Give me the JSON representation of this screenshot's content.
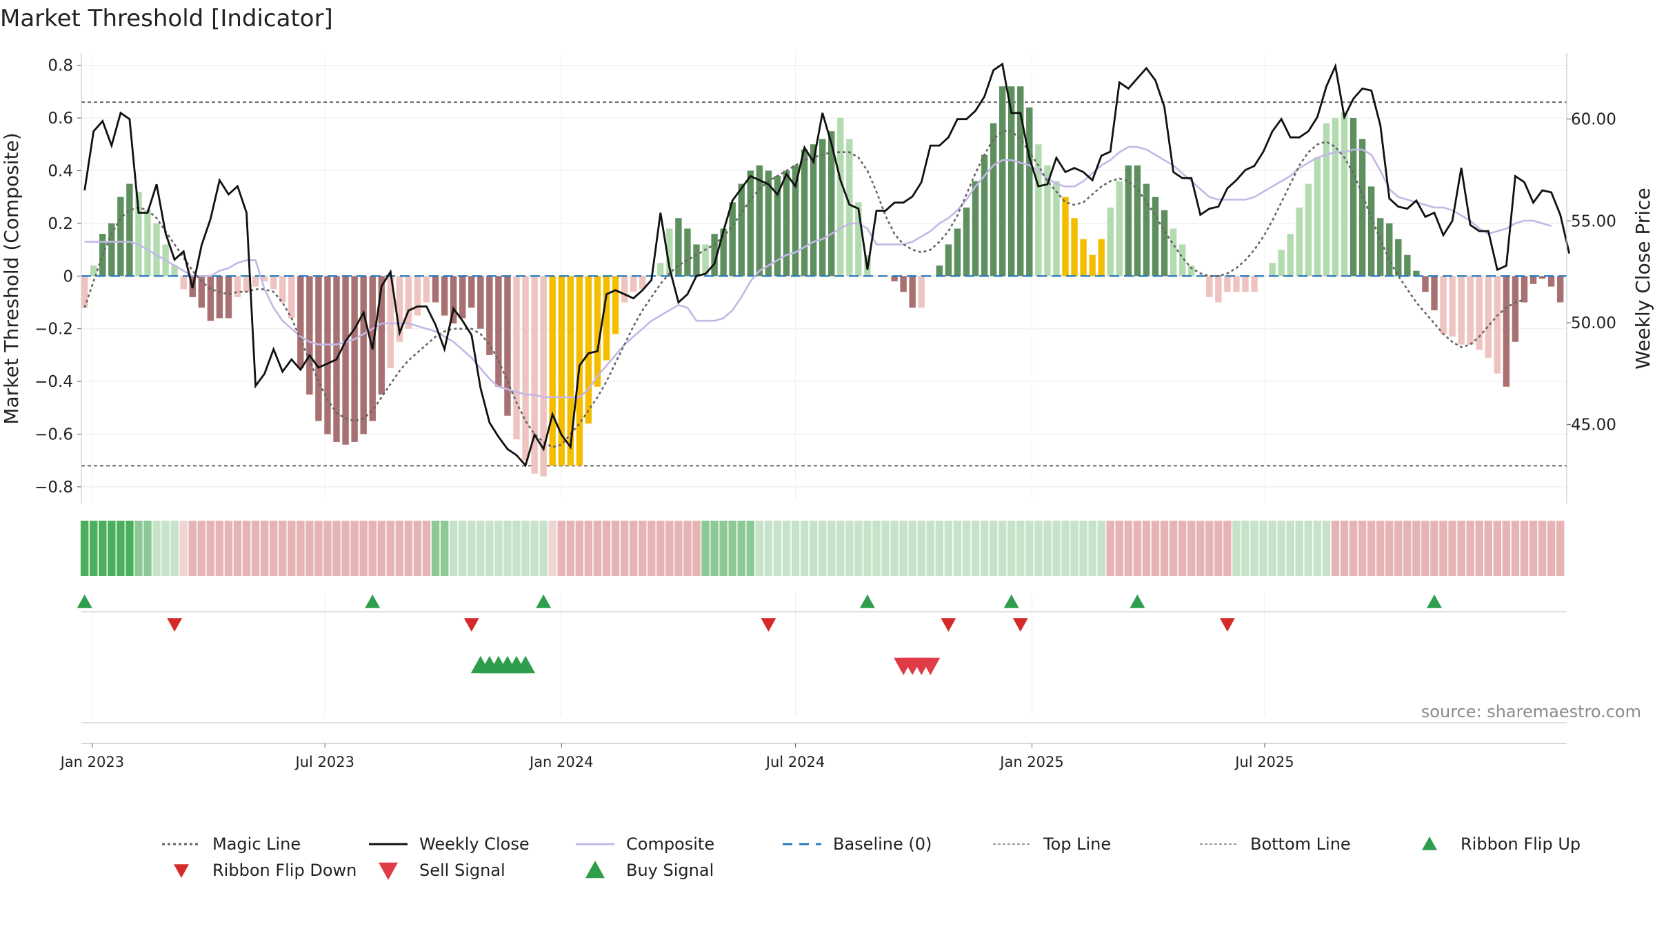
{
  "title": "Market Threshold [Indicator]",
  "source": "source: sharemaestro.com",
  "chart_data": {
    "type": "bar",
    "y_left_label": "Market Threshold (Composite)",
    "y_right_label": "Weekly Close Price",
    "y_left_ticks": [
      0.8,
      0.6,
      0.4,
      0.2,
      0,
      -0.2,
      -0.4,
      -0.6,
      -0.8
    ],
    "y_left_tick_labels": [
      "0.8",
      "0.6",
      "0.4",
      "0.2",
      "0",
      "−0.2",
      "−0.4",
      "−0.6",
      "−0.8"
    ],
    "y_left_range": [
      -0.85,
      0.82
    ],
    "y_right_ticks": [
      60,
      55,
      50,
      45
    ],
    "y_right_tick_labels": [
      "60.00",
      "55.00",
      "50.00",
      "45.00"
    ],
    "y_right_range": [
      41.3,
      62.9
    ],
    "x_ticks": [
      "Jan 2023",
      "Jul 2023",
      "Jan 2024",
      "Jul 2024",
      "Jan 2025",
      "Jul 2025"
    ],
    "x_start": "2022-12-26",
    "x_step_days": 7,
    "threshold_lines": {
      "top": 0.66,
      "bottom": -0.72
    },
    "histogram": [
      -0.12,
      0.04,
      0.16,
      0.2,
      0.3,
      0.35,
      0.32,
      0.25,
      0.2,
      0.12,
      0.04,
      -0.05,
      -0.08,
      -0.12,
      -0.17,
      -0.16,
      -0.16,
      -0.08,
      -0.06,
      -0.04,
      -0.02,
      -0.05,
      -0.1,
      -0.16,
      -0.35,
      -0.45,
      -0.55,
      -0.6,
      -0.63,
      -0.64,
      -0.63,
      -0.6,
      -0.55,
      -0.45,
      -0.35,
      -0.25,
      -0.2,
      -0.15,
      -0.1,
      -0.1,
      -0.15,
      -0.18,
      -0.16,
      -0.12,
      -0.2,
      -0.3,
      -0.42,
      -0.53,
      -0.62,
      -0.7,
      -0.75,
      -0.76,
      -0.72,
      -0.72,
      -0.72,
      -0.72,
      -0.56,
      -0.42,
      -0.32,
      -0.22,
      -0.1,
      -0.06,
      -0.05,
      0,
      0.05,
      0.18,
      0.22,
      0.18,
      0.12,
      0.12,
      0.16,
      0.18,
      0.28,
      0.35,
      0.4,
      0.42,
      0.4,
      0.38,
      0.4,
      0.42,
      0.48,
      0.5,
      0.52,
      0.55,
      0.6,
      0.52,
      0.28,
      0.08,
      0,
      0,
      -0.02,
      -0.06,
      -0.12,
      -0.12,
      0,
      0.04,
      0.12,
      0.18,
      0.26,
      0.36,
      0.46,
      0.58,
      0.72,
      0.72,
      0.72,
      0.64,
      0.5,
      0.42,
      0.36,
      0.3,
      0.22,
      0.14,
      0.08,
      0.14,
      0.26,
      0.36,
      0.42,
      0.42,
      0.35,
      0.3,
      0.25,
      0.18,
      0.12,
      0.04,
      0,
      -0.08,
      -0.1,
      -0.06,
      -0.06,
      -0.06,
      -0.06,
      0,
      0.05,
      0.1,
      0.16,
      0.26,
      0.35,
      0.45,
      0.58,
      0.6,
      0.62,
      0.6,
      0.52,
      0.34,
      0.22,
      0.2,
      0.14,
      0.08,
      0.02,
      -0.06,
      -0.13,
      -0.22,
      -0.23,
      -0.26,
      -0.26,
      -0.28,
      -0.31,
      -0.37,
      -0.42,
      -0.25,
      -0.1,
      -0.03,
      -0.01,
      -0.04,
      -0.1
    ],
    "hist_color_codes": "LLDDDDLLLLLLRRRRRLLLLLLLRRRRRRRRRRLLLLLRRRRRRRRRLLLLLLLLLLLLLLLLLLDDDLDDDDDDDDDDDDDDLLLLRRRRRLDDDDDDDDDDDDLLLLLLLLLLDDDDDLLLLLLLLLLRRRLLLLLLLDDDDDDDDDDLLLLLLLRRRRRRRRRRRRLLLLLR",
    "extreme_indices": [
      52,
      53,
      54,
      55,
      56,
      57,
      58,
      59,
      109,
      110,
      111,
      112,
      113
    ],
    "weekly_close": [
      56.5,
      59.4,
      59.9,
      58.7,
      60.3,
      60,
      55.4,
      55.4,
      56.8,
      54.4,
      53.1,
      53.5,
      51.7,
      53.8,
      55.1,
      57,
      56.3,
      56.7,
      55.4,
      46.9,
      47.5,
      48.7,
      47.6,
      48.2,
      47.7,
      48.4,
      47.8,
      48,
      48.2,
      49.1,
      49.7,
      50.5,
      48.7,
      51.8,
      52.5,
      49.5,
      50.6,
      50.8,
      50.8,
      49.9,
      48.7,
      50.7,
      50.1,
      49.4,
      46.8,
      45.1,
      44.4,
      43.8,
      43.5,
      43,
      44.5,
      43.8,
      45.5,
      44.5,
      43.9,
      47.9,
      48.5,
      48.6,
      51.4,
      51.6,
      51.4,
      51.2,
      51.6,
      52.1,
      55.4,
      52.7,
      51,
      51.4,
      52.3,
      52.4,
      52.9,
      54.5,
      56,
      56.6,
      57.2,
      57,
      56.8,
      56.3,
      57.3,
      56.7,
      58.6,
      57.9,
      60.3,
      58.8,
      57,
      55.8,
      55.6,
      52.6,
      55.5,
      55.5,
      55.9,
      55.9,
      56.2,
      56.9,
      58.7,
      58.7,
      59.1,
      60,
      60,
      60.4,
      61.1,
      62.4,
      62.7,
      60.3,
      60.3,
      58.1,
      56.7,
      56.8,
      58.1,
      57.4,
      57.6,
      57.4,
      57,
      58.2,
      58.4,
      61.8,
      61.5,
      62,
      62.5,
      61.9,
      60.6,
      57.4,
      57.1,
      57.1,
      55.3,
      55.6,
      55.7,
      56.6,
      57,
      57.5,
      57.7,
      58.4,
      59.4,
      60,
      59.1,
      59.1,
      59.4,
      60.1,
      61.6,
      62.6,
      60.1,
      61,
      61.5,
      61.4,
      59.7,
      56.1,
      55.7,
      55.6,
      56,
      55.2,
      55.4,
      54.3,
      55,
      57.6,
      54.8,
      54.5,
      54.5,
      52.6,
      52.8,
      57.2,
      56.9,
      55.9,
      56.5,
      56.4,
      55.3,
      53.4
    ],
    "composite": [
      0.13,
      0.13,
      0.13,
      0.13,
      0.13,
      0.13,
      0.12,
      0.1,
      0.08,
      0.06,
      0.04,
      0.02,
      0,
      0,
      0,
      0.02,
      0.03,
      0.05,
      0.06,
      0.06,
      -0.05,
      -0.12,
      -0.17,
      -0.2,
      -0.23,
      -0.25,
      -0.26,
      -0.26,
      -0.26,
      -0.25,
      -0.24,
      -0.22,
      -0.2,
      -0.18,
      -0.18,
      -0.18,
      -0.18,
      -0.19,
      -0.2,
      -0.21,
      -0.23,
      -0.25,
      -0.28,
      -0.31,
      -0.35,
      -0.39,
      -0.42,
      -0.43,
      -0.44,
      -0.45,
      -0.45,
      -0.46,
      -0.46,
      -0.46,
      -0.46,
      -0.46,
      -0.43,
      -0.38,
      -0.34,
      -0.3,
      -0.26,
      -0.23,
      -0.2,
      -0.17,
      -0.15,
      -0.13,
      -0.11,
      -0.12,
      -0.17,
      -0.17,
      -0.17,
      -0.16,
      -0.13,
      -0.08,
      -0.02,
      0.02,
      0.04,
      0.06,
      0.08,
      0.09,
      0.11,
      0.13,
      0.14,
      0.16,
      0.18,
      0.2,
      0.2,
      0.18,
      0.12,
      0.12,
      0.12,
      0.12,
      0.13,
      0.15,
      0.17,
      0.2,
      0.22,
      0.25,
      0.29,
      0.34,
      0.38,
      0.42,
      0.44,
      0.44,
      0.43,
      0.42,
      0.4,
      0.37,
      0.35,
      0.34,
      0.34,
      0.36,
      0.39,
      0.42,
      0.44,
      0.47,
      0.49,
      0.49,
      0.48,
      0.46,
      0.44,
      0.42,
      0.39,
      0.36,
      0.33,
      0.3,
      0.29,
      0.29,
      0.29,
      0.29,
      0.3,
      0.32,
      0.34,
      0.36,
      0.38,
      0.41,
      0.43,
      0.45,
      0.46,
      0.47,
      0.47,
      0.48,
      0.48,
      0.46,
      0.4,
      0.33,
      0.3,
      0.29,
      0.28,
      0.27,
      0.26,
      0.26,
      0.25,
      0.23,
      0.21,
      0.18,
      0.16,
      0.17,
      0.18,
      0.2,
      0.21,
      0.21,
      0.2,
      0.19
    ],
    "magic_line": [
      -0.12,
      -0.02,
      0.08,
      0.16,
      0.22,
      0.25,
      0.26,
      0.25,
      0.22,
      0.17,
      0.12,
      0.07,
      0.02,
      -0.02,
      -0.05,
      -0.06,
      -0.07,
      -0.06,
      -0.06,
      -0.05,
      -0.05,
      -0.06,
      -0.1,
      -0.16,
      -0.24,
      -0.32,
      -0.4,
      -0.47,
      -0.52,
      -0.54,
      -0.55,
      -0.54,
      -0.51,
      -0.46,
      -0.41,
      -0.36,
      -0.32,
      -0.29,
      -0.26,
      -0.23,
      -0.21,
      -0.2,
      -0.2,
      -0.2,
      -0.22,
      -0.26,
      -0.32,
      -0.4,
      -0.48,
      -0.55,
      -0.6,
      -0.63,
      -0.65,
      -0.64,
      -0.6,
      -0.56,
      -0.51,
      -0.46,
      -0.4,
      -0.33,
      -0.26,
      -0.19,
      -0.13,
      -0.08,
      -0.03,
      0.01,
      0.04,
      0.06,
      0.08,
      0.1,
      0.12,
      0.15,
      0.19,
      0.24,
      0.29,
      0.33,
      0.36,
      0.38,
      0.4,
      0.42,
      0.44,
      0.45,
      0.46,
      0.47,
      0.47,
      0.47,
      0.45,
      0.4,
      0.32,
      0.23,
      0.16,
      0.12,
      0.1,
      0.09,
      0.1,
      0.13,
      0.17,
      0.23,
      0.31,
      0.39,
      0.46,
      0.52,
      0.55,
      0.55,
      0.52,
      0.47,
      0.42,
      0.36,
      0.32,
      0.28,
      0.27,
      0.28,
      0.31,
      0.34,
      0.36,
      0.37,
      0.36,
      0.33,
      0.28,
      0.23,
      0.17,
      0.12,
      0.07,
      0.03,
      0.01,
      0,
      0,
      0.01,
      0.03,
      0.06,
      0.1,
      0.15,
      0.21,
      0.28,
      0.35,
      0.42,
      0.47,
      0.5,
      0.51,
      0.49,
      0.45,
      0.39,
      0.31,
      0.22,
      0.14,
      0.06,
      0,
      -0.05,
      -0.1,
      -0.14,
      -0.18,
      -0.22,
      -0.25,
      -0.27,
      -0.26,
      -0.23,
      -0.19,
      -0.15,
      -0.12,
      -0.1,
      -0.09
    ],
    "ribbon": {
      "color_codes": "GGGGGGgglllprrrrrrrrrrrrrrrrrrrrrrrrrrrgglllllllllllprrrrrrrrrrrrrrrrgggggglllllllllllllllllllllllllllllllllllllllrrrrrrrrrrrrrrlllllllllllrrrrrrrrrrrrrrrrrrrrrrrrrrrrrrrrrllllllllllllrrrrrrrrrrrrrrrrrrrrrrrrrlll",
      "colors": {
        "G": "#4caf5e",
        "g": "#8cc996",
        "l": "#c6e2c8",
        "r": "#e6b4b4",
        "p": "#f0d4d4"
      }
    },
    "ribbon_flip_up": [
      "2022-12-26",
      "2023-08-07",
      "2023-12-18",
      "2024-08-26",
      "2024-12-16",
      "2025-03-24",
      "2025-11-10"
    ],
    "ribbon_flip_down": [
      "2023-03-06",
      "2023-10-23",
      "2024-06-10",
      "2024-10-28",
      "2024-12-23",
      "2025-06-02"
    ],
    "buy_signals": [
      "2023-10-30",
      "2023-11-06",
      "2023-11-13",
      "2023-11-20",
      "2023-11-27",
      "2023-12-04"
    ],
    "sell_signals": [
      "2024-09-23",
      "2024-09-30",
      "2024-10-07",
      "2024-10-14"
    ],
    "legend": [
      "Magic Line",
      "Weekly Close",
      "Composite",
      "Baseline (0)",
      "Top Line",
      "Bottom Line",
      "Ribbon Flip Up",
      "Ribbon Flip Down",
      "Sell Signal",
      "Buy Signal"
    ],
    "colors": {
      "dark_green": "#5e8f5e",
      "light_green": "#b3dbb0",
      "dark_red": "#a87070",
      "light_red": "#efc3bf",
      "extreme": "#f5bd00",
      "composite": "#c2b8e6",
      "baseline": "#2b7bb9",
      "magic": "#666666",
      "close": "#111111",
      "flip_up": "#2e9e4d",
      "flip_down": "#d42a2a",
      "buy": "#2e9e4d",
      "sell": "#e03c47",
      "threshold": "#666666"
    },
    "grid": true
  }
}
